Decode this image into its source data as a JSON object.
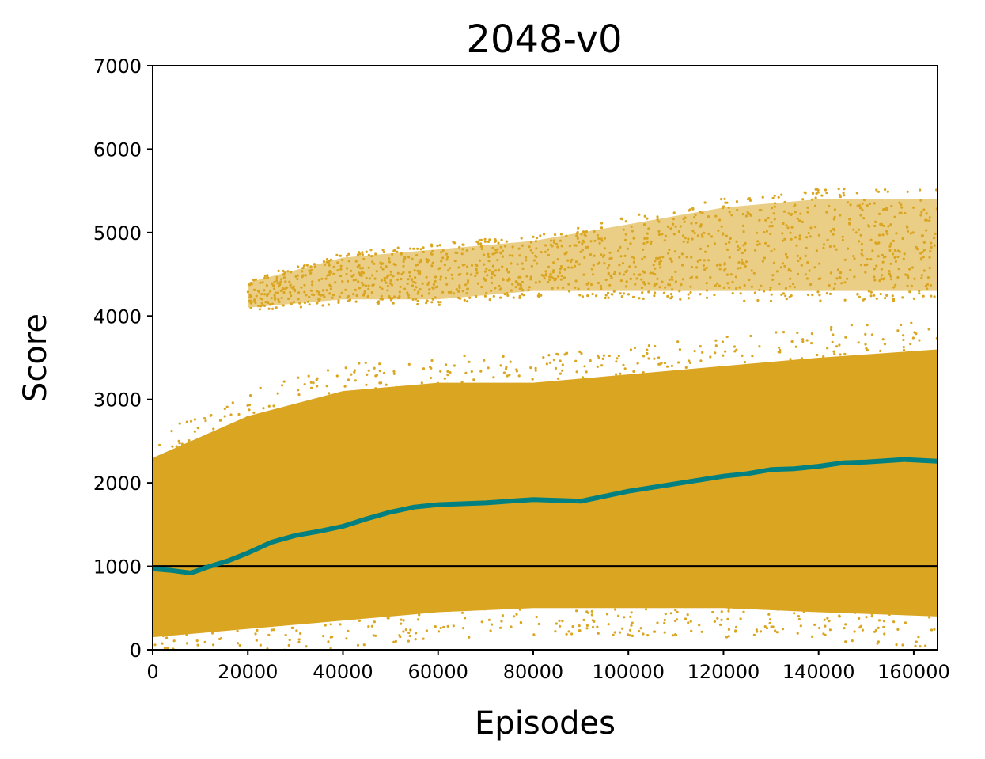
{
  "chart_data": {
    "type": "scatter",
    "title": "2048-v0",
    "xlabel": "Episodes",
    "ylabel": "Score",
    "xlim": [
      0,
      165000
    ],
    "ylim": [
      0,
      7000
    ],
    "xticks": [
      0,
      20000,
      40000,
      60000,
      80000,
      100000,
      120000,
      140000,
      160000
    ],
    "yticks": [
      0,
      1000,
      2000,
      3000,
      4000,
      5000,
      6000,
      7000
    ],
    "grid": false,
    "colors": {
      "scatter": "#DAA520",
      "trend": "#008080",
      "baseline": "#000000"
    },
    "baseline": 1000,
    "trend": {
      "x": [
        0,
        4000,
        8000,
        12000,
        16000,
        20000,
        25000,
        30000,
        35000,
        40000,
        45000,
        50000,
        55000,
        60000,
        70000,
        80000,
        85000,
        90000,
        95000,
        100000,
        110000,
        120000,
        125000,
        130000,
        135000,
        140000,
        145000,
        150000,
        158000,
        165000
      ],
      "y": [
        970,
        950,
        920,
        1000,
        1070,
        1160,
        1290,
        1370,
        1420,
        1480,
        1570,
        1650,
        1710,
        1740,
        1760,
        1800,
        1790,
        1780,
        1840,
        1900,
        1990,
        2080,
        2110,
        2160,
        2170,
        2200,
        2240,
        2250,
        2280,
        2260
      ]
    },
    "scatter_bands": [
      {
        "x": [
          0,
          20000,
          40000,
          60000,
          80000,
          100000,
          120000,
          140000,
          165000
        ],
        "low": [
          150,
          250,
          350,
          450,
          500,
          500,
          500,
          450,
          400
        ],
        "high": [
          2300,
          2800,
          3100,
          3200,
          3200,
          3300,
          3400,
          3500,
          3600
        ],
        "density": 1
      },
      {
        "x": [
          20000,
          40000,
          60000,
          80000,
          100000,
          120000,
          140000,
          165000
        ],
        "low": [
          4100,
          4200,
          4200,
          4300,
          4300,
          4300,
          4300,
          4300
        ],
        "high": [
          4400,
          4700,
          4800,
          4900,
          5100,
          5300,
          5400,
          5400
        ],
        "density": 0.25
      }
    ]
  }
}
